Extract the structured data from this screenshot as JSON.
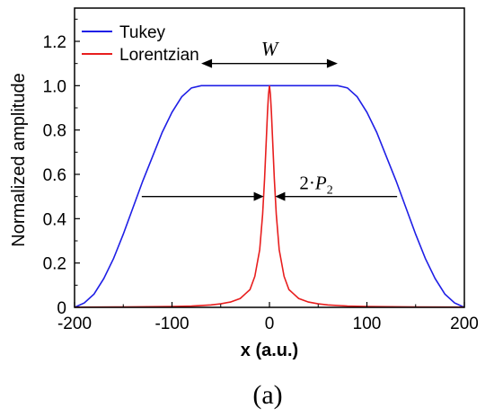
{
  "chart_data": {
    "type": "line",
    "xlabel": "x (a.u.)",
    "ylabel": "Normalized amplitude",
    "xlim": [
      -200,
      200
    ],
    "ylim": [
      0,
      1.35
    ],
    "xticks": [
      "-200",
      "-100",
      "0",
      "100",
      "200"
    ],
    "yticks": [
      "0",
      "0.2",
      "0.4",
      "0.6",
      "0.8",
      "1.0",
      "1.2"
    ],
    "legend_position": "top-left",
    "series": [
      {
        "name": "Tukey",
        "color": "#1f1fe6",
        "x": [
          -200,
          -190,
          -180,
          -170,
          -160,
          -150,
          -140,
          -130,
          -120,
          -110,
          -100,
          -90,
          -80,
          -70,
          0,
          70,
          80,
          90,
          100,
          110,
          120,
          130,
          140,
          150,
          160,
          170,
          180,
          190,
          200
        ],
        "y": [
          0,
          0.02,
          0.06,
          0.13,
          0.22,
          0.33,
          0.45,
          0.57,
          0.68,
          0.79,
          0.88,
          0.95,
          0.99,
          1.0,
          1.0,
          1.0,
          0.99,
          0.95,
          0.88,
          0.79,
          0.68,
          0.57,
          0.45,
          0.33,
          0.22,
          0.13,
          0.06,
          0.02,
          0
        ]
      },
      {
        "name": "Lorentzian",
        "color": "#e81e1e",
        "x": [
          -200,
          -150,
          -100,
          -80,
          -60,
          -50,
          -40,
          -30,
          -25,
          -20,
          -15,
          -10,
          -7,
          -5,
          -3,
          -2,
          -1,
          0,
          1,
          2,
          3,
          5,
          7,
          10,
          15,
          20,
          25,
          30,
          40,
          50,
          60,
          80,
          100,
          150,
          200
        ],
        "y": [
          0.001,
          0.002,
          0.004,
          0.006,
          0.011,
          0.016,
          0.024,
          0.04,
          0.06,
          0.08,
          0.14,
          0.26,
          0.42,
          0.58,
          0.78,
          0.88,
          0.96,
          1.0,
          0.96,
          0.88,
          0.78,
          0.58,
          0.42,
          0.26,
          0.14,
          0.08,
          0.06,
          0.04,
          0.024,
          0.016,
          0.011,
          0.006,
          0.004,
          0.002,
          0.001
        ]
      }
    ],
    "annotations": {
      "width_label": "W",
      "width_arrow": {
        "x_start": -70,
        "x_end": 70,
        "y": 1.1
      },
      "fwhm_prefix": "2·",
      "fwhm_symbol": "P",
      "fwhm_subscript": "2",
      "fwhm_arrow": {
        "x_left": -5,
        "x_right": 5,
        "y": 0.5,
        "arrow_length": 30
      }
    },
    "panel_label": "(a)"
  }
}
